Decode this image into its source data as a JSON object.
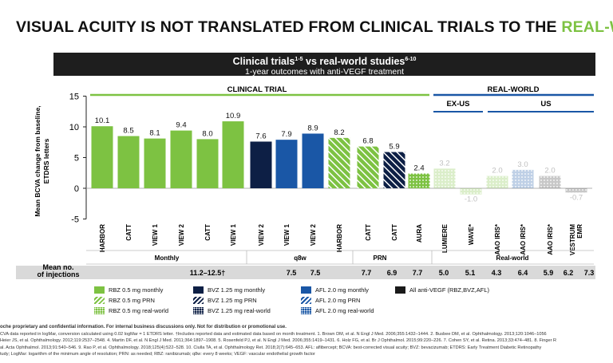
{
  "title": {
    "main": "VISUAL ACUITY IS NOT TRANSLATED FROM CLINICAL TRIALS TO THE ",
    "accent": "REAL-WORLD"
  },
  "banner": {
    "line1": "Clinical trials",
    "sup1": "1-5",
    "mid": " vs real-world studies",
    "sup2": "6-10",
    "line2": "1-year outcomes with anti-VEGF treatment"
  },
  "colors": {
    "rbz": "#7dc242",
    "bvz": "#0d1f45",
    "afl": "#1a57a6",
    "all": "#1a1a1a",
    "section": "#1a57a6"
  },
  "chart_data": {
    "type": "bar",
    "ylabel": "Mean BCVA change from baseline,\nETDRS letters",
    "ylim": [
      -5,
      15
    ],
    "yticks": [
      -5,
      0,
      5,
      10,
      15
    ],
    "categories": [
      "HARBOR",
      "CATT",
      "VIEW 1",
      "VIEW 2",
      "CATT",
      "VIEW 1",
      "VIEW 2",
      "VIEW 1",
      "VIEW 2",
      "HARBOR",
      "CATT",
      "CATT",
      "AURA",
      "LUMIERE",
      "WAVE*",
      "AAO IRIS*",
      "AAO IRIS*",
      "AAO IRIS*",
      "VESTRUM EMR"
    ],
    "values": [
      10.1,
      8.5,
      8.1,
      9.4,
      8.0,
      10.9,
      7.6,
      7.9,
      8.9,
      8.2,
      6.8,
      5.9,
      2.4,
      3.2,
      -1.0,
      2.0,
      3.0,
      2.0,
      -0.7
    ],
    "labels": [
      "10.1",
      "8.5",
      "8.1",
      "9.4",
      "8.0",
      "10.9",
      "7.6",
      "7.9",
      "8.9",
      "8.2",
      "6.8",
      "5.9",
      "2.4",
      "3.2",
      "-1.0",
      "2.0",
      "3.0",
      "2.0",
      "-0.7"
    ],
    "series_key": [
      "rbz-monthly",
      "rbz-monthly",
      "rbz-monthly",
      "rbz-monthly",
      "rbz-monthly",
      "rbz-monthly",
      "bvz-monthly",
      "afl-monthly",
      "afl-monthly",
      "rbz-prn",
      "rbz-prn",
      "bvz-prn",
      "rbz-real",
      "rbz-real",
      "rbz-real",
      "rbz-real",
      "afl-real",
      "all-anti",
      "all-anti"
    ],
    "faded": [
      false,
      false,
      false,
      false,
      false,
      false,
      false,
      false,
      false,
      false,
      false,
      false,
      false,
      true,
      true,
      true,
      true,
      true,
      true
    ],
    "sections": {
      "clinical": "CLINICAL TRIAL",
      "realworld": "REAL-WORLD",
      "exus": "EX-US",
      "us": "US"
    },
    "groups": [
      "Monthly",
      "q8w",
      "PRN",
      "Real-world"
    ],
    "injections_label": "Mean no.\nof injections",
    "injections": [
      "11.2–12.5†",
      "7.5",
      "7.5",
      "7.7",
      "6.9",
      "7.7",
      "5.0",
      "5.1",
      "4.3",
      "6.4",
      "5.9",
      "6.2",
      "7.3"
    ]
  },
  "legend": [
    {
      "label": "RBZ 0.5 mg monthly",
      "key": "rbz-monthly"
    },
    {
      "label": "RBZ 0.5 mg PRN",
      "key": "rbz-prn"
    },
    {
      "label": "RBZ 0.5 mg real-world",
      "key": "rbz-real"
    },
    {
      "label": "BVZ 1.25 mg monthly",
      "key": "bvz-monthly"
    },
    {
      "label": "BVZ 1.25 mg PRN",
      "key": "bvz-prn"
    },
    {
      "label": "BVZ 1.25 mg real-world",
      "key": "bvz-real"
    },
    {
      "label": "AFL 2.0 mg monthly",
      "key": "afl-monthly"
    },
    {
      "label": "AFL 2.0 mg PRN",
      "key": "afl-prn"
    },
    {
      "label": "AFL 2.0 mg real-world",
      "key": "afl-real"
    },
    {
      "label": "All anti-VEGF (RBZ,BVZ,AFL)",
      "key": "all-anti"
    }
  ],
  "footnotes": {
    "l1": "oche proprietary and confidential information. For internal business discussions only. Not for distribution or promotional use.",
    "l2": "CVA data reported in logMar, conversion calculated using 0.02 logMar = 1 ETDRS letter. †Includes reported data and estimated data based on month treatment. 1. Brown DM, et al. N Engl J Med. 2006;355:1432–1444. 2. Busbee DM, et al. Ophthalmology. 2013;120:1046–1056",
    "l3": "Heier JS, et al. Ophthalmology. 2012;119:2537–2548. 4. Martin DF, et al. N Engl J Med. 2011;364:1897–1908. 5. Rosenfeld PJ, et al. N Engl J Med. 2006;355:1419–1431. 6. Holz FG, et al. Br J Ophthalmol. 2015;99:220–226. 7. Cohen SY, et al. Retina. 2013;33:474–481. 8. Finger R",
    "l4": "al. Acta Ophthalmol. 2013;91:540–546. 9. Rao P, et al. Ophthalmology. 2018;125(4):522–528. 10. Ciulla TA, et al. Ophthalmology Ret. 2018;2(7):645–653. AFL: aflibercept; BCVA: best-corrected visual acuity; BVZ: bevacizumab; ETDRS: Early Treatment Diabetic Retinopathy",
    "l5": "tudy; LogMar: logarithm of the minimum angle of resolution; PRN: as needed; RBZ: ranibizumab; q8w: every 8 weeks; VEGF: vascular endothelial growth factor"
  }
}
